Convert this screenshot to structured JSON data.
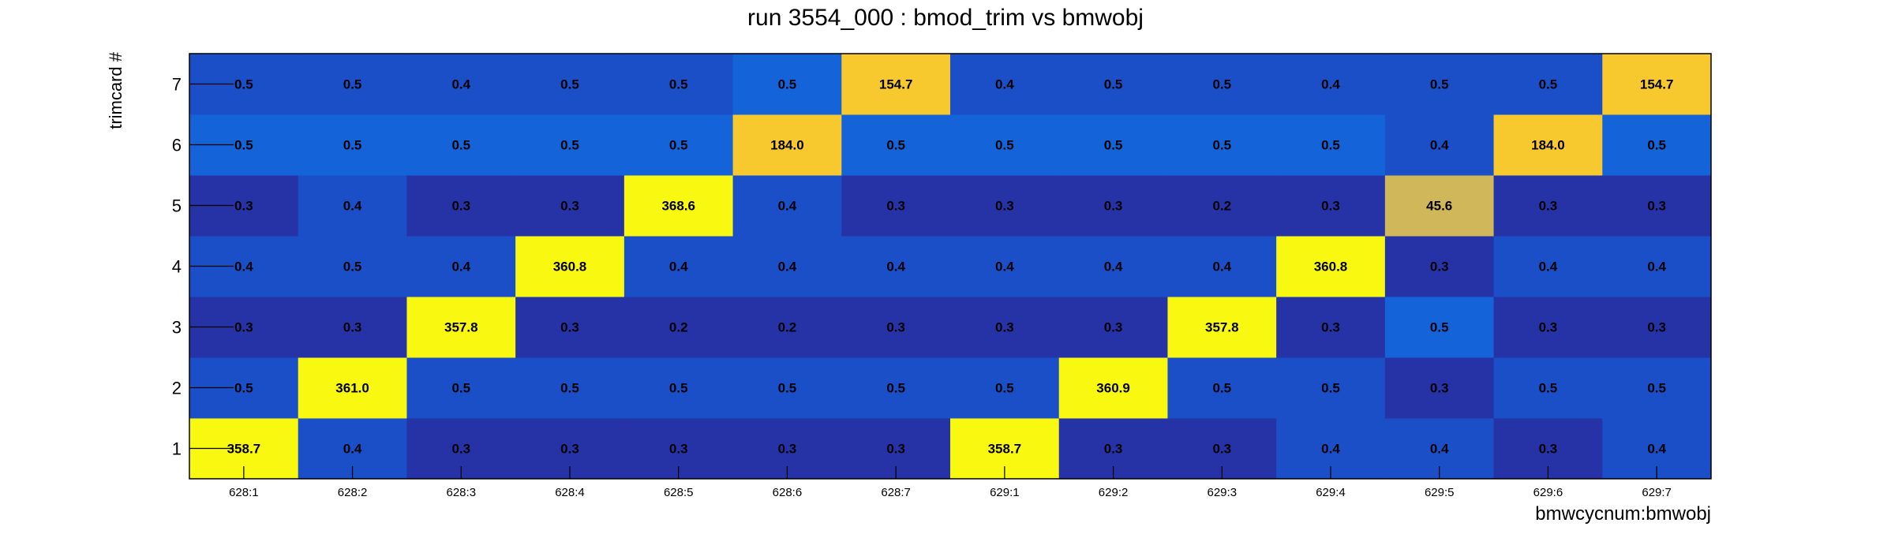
{
  "chart_data": {
    "type": "heatmap",
    "title": "run 3554_000 : bmod_trim vs bmwobj",
    "xlabel": "bmwcycnum:bmwobj",
    "ylabel": "trimcard #",
    "x_categories": [
      "628:1",
      "628:2",
      "628:3",
      "628:4",
      "628:5",
      "628:6",
      "628:7",
      "629:1",
      "629:2",
      "629:3",
      "629:4",
      "629:5",
      "629:6",
      "629:7"
    ],
    "y_categories": [
      "1",
      "2",
      "3",
      "4",
      "5",
      "6",
      "7"
    ],
    "values": [
      [
        358.7,
        0.4,
        0.3,
        0.3,
        0.3,
        0.3,
        0.3,
        358.7,
        0.3,
        0.3,
        0.4,
        0.4,
        0.3,
        0.4
      ],
      [
        0.5,
        361.0,
        0.5,
        0.5,
        0.5,
        0.5,
        0.5,
        0.5,
        360.9,
        0.5,
        0.5,
        0.3,
        0.5,
        0.5
      ],
      [
        0.3,
        0.3,
        357.8,
        0.3,
        0.2,
        0.2,
        0.3,
        0.3,
        0.3,
        357.8,
        0.3,
        0.5,
        0.3,
        0.3
      ],
      [
        0.4,
        0.5,
        0.4,
        360.8,
        0.4,
        0.4,
        0.4,
        0.4,
        0.4,
        0.4,
        360.8,
        0.3,
        0.4,
        0.4
      ],
      [
        0.3,
        0.4,
        0.3,
        0.3,
        368.6,
        0.4,
        0.3,
        0.3,
        0.3,
        0.2,
        0.3,
        45.6,
        0.3,
        0.3
      ],
      [
        0.5,
        0.5,
        0.5,
        0.5,
        0.5,
        184.0,
        0.5,
        0.5,
        0.5,
        0.5,
        0.5,
        0.4,
        184.0,
        0.5
      ],
      [
        0.5,
        0.5,
        0.4,
        0.5,
        0.5,
        0.5,
        154.7,
        0.4,
        0.5,
        0.5,
        0.4,
        0.5,
        0.5,
        154.7
      ]
    ],
    "palette": {
      "low": "#2633a6",
      "mid_low": "#1a4fc7",
      "mid": "#1563d9",
      "mid_high": "#d0b75a",
      "high": "#f7c92e",
      "max": "#f8f810"
    },
    "grid": false,
    "legend": "none"
  }
}
